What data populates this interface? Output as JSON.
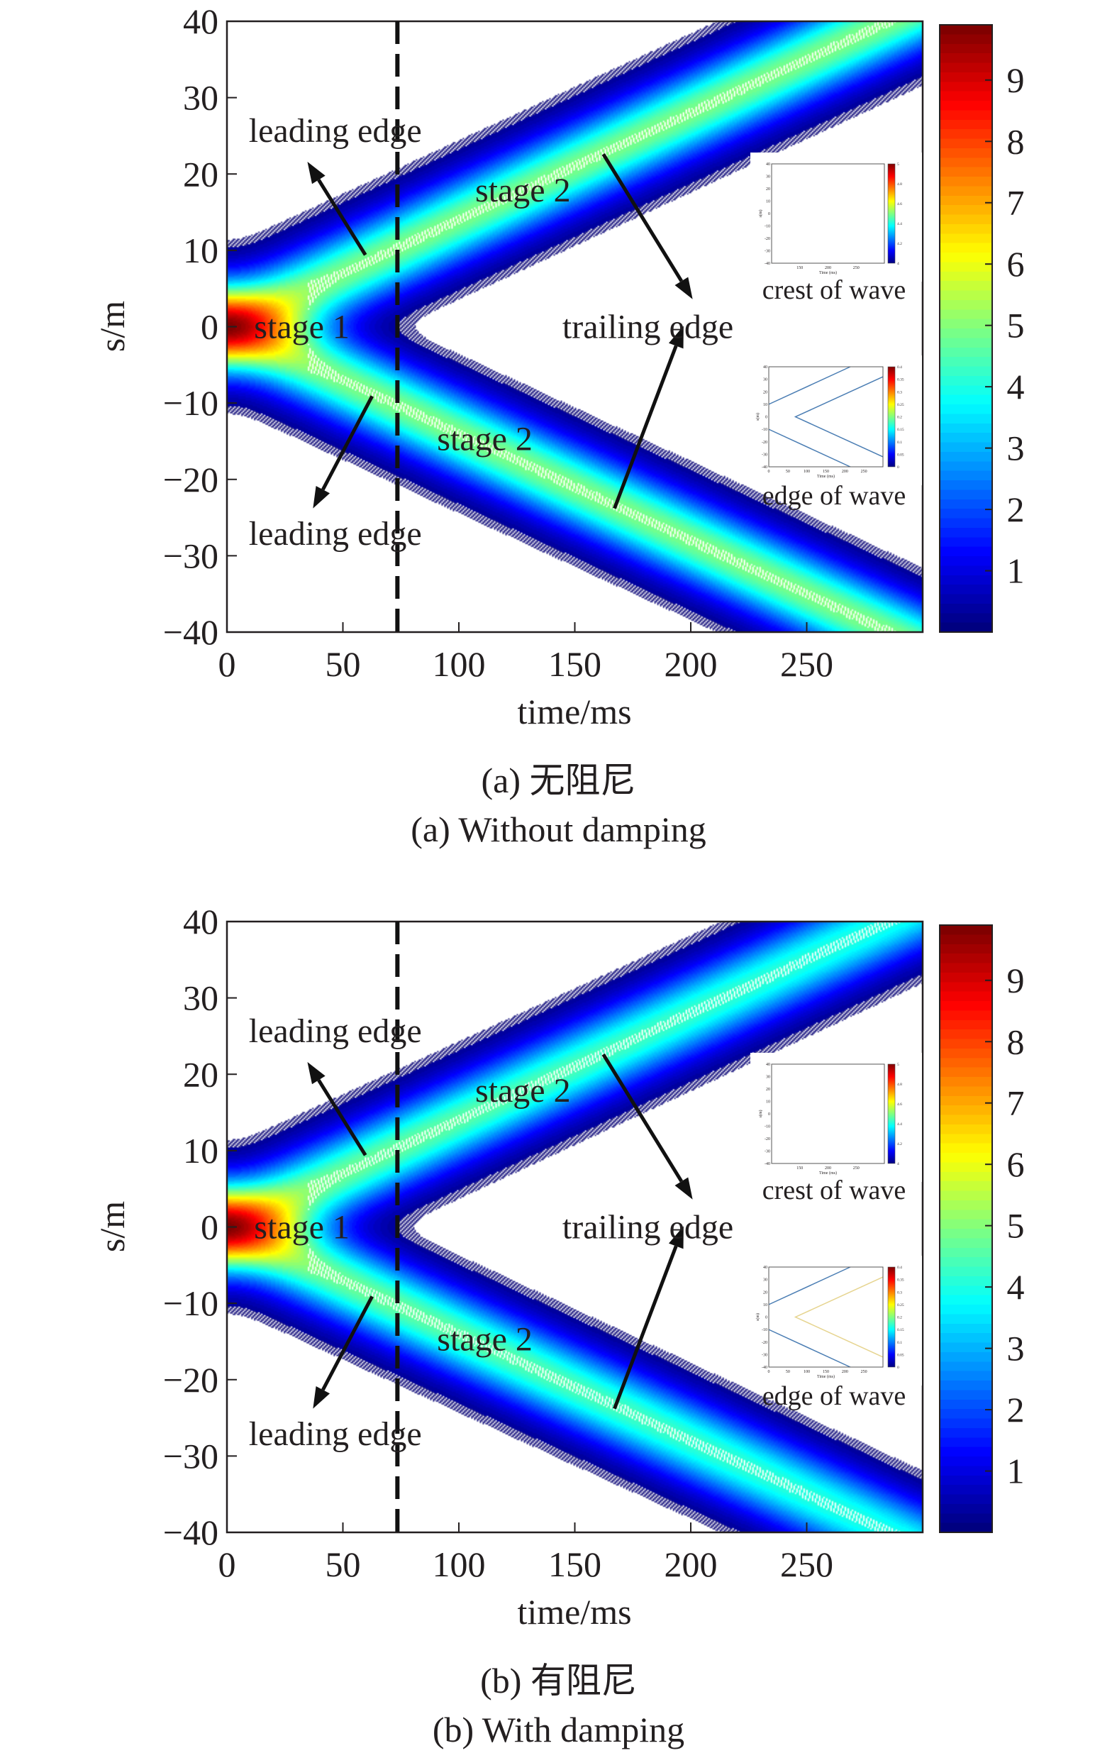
{
  "chart_data": [
    {
      "type": "heatmap",
      "panel": "a",
      "damping": false,
      "xlabel": "time/ms",
      "ylabel": "s/m",
      "xlim": [
        0,
        300
      ],
      "ylim": [
        -40,
        40
      ],
      "xticks": [
        "0",
        "50",
        "100",
        "150",
        "200",
        "250"
      ],
      "yticks": [
        "40",
        "30",
        "20",
        "10",
        "0",
        "−10",
        "−20",
        "−30",
        "−40"
      ],
      "colorbar": {
        "range": [
          0,
          9.9
        ],
        "ticks": [
          "1",
          "2",
          "3",
          "4",
          "5",
          "6",
          "7",
          "8",
          "9"
        ],
        "colormap": "jet"
      },
      "dashed_vline_x": 73.5,
      "wave": {
        "speed_m_per_ms": 0.14,
        "stage1_peak": 10,
        "stage2_peak": 5,
        "stage2_peak_at_300ms": 5,
        "leading_edge_s_at_t0": 10,
        "trailing_edge_origin_t": 70
      },
      "annotations": [
        "leading edge",
        "stage 2",
        "stage 1",
        "trailing edge",
        "stage 2",
        "leading edge"
      ],
      "insets": [
        {
          "label": "crest of wave",
          "xlabel": "Time (ms)",
          "ylabel": "s(m)",
          "xlim": [
            100,
            300
          ],
          "ylim": [
            -40,
            40
          ],
          "xticks": [
            "150",
            "200",
            "250"
          ],
          "yticks": [
            "40",
            "30",
            "20",
            "10",
            "0",
            "-10",
            "-20",
            "-30",
            "-40"
          ],
          "colorbar": {
            "range": [
              4,
              5
            ],
            "ticks": [
              "5",
              "4.8",
              "4.6",
              "4.4",
              "4.2",
              "4"
            ]
          }
        },
        {
          "label": "edge of wave",
          "xlabel": "Time (ms)",
          "ylabel": "s(m)",
          "xlim": [
            0,
            300
          ],
          "ylim": [
            -40,
            40
          ],
          "xticks": [
            "0",
            "50",
            "100",
            "150",
            "200",
            "250"
          ],
          "yticks": [
            "40",
            "30",
            "20",
            "10",
            "0",
            "-10",
            "-20",
            "-30",
            "-40"
          ],
          "colorbar": {
            "range": [
              0,
              0.4
            ],
            "ticks": [
              "0.4",
              "0.35",
              "0.3",
              "0.25",
              "0.2",
              "0.15",
              "0.1",
              "0.05",
              "0"
            ]
          },
          "line_colors": {
            "leading": "#4a7db3",
            "trailing": "#4a7db3"
          }
        }
      ],
      "caption_cn": "(a) 无阻尼",
      "caption_en": "(a) Without damping"
    },
    {
      "type": "heatmap",
      "panel": "b",
      "damping": true,
      "xlabel": "time/ms",
      "ylabel": "s/m",
      "xlim": [
        0,
        300
      ],
      "ylim": [
        -40,
        40
      ],
      "xticks": [
        "0",
        "50",
        "100",
        "150",
        "200",
        "250"
      ],
      "yticks": [
        "40",
        "30",
        "20",
        "10",
        "0",
        "−10",
        "−20",
        "−30",
        "−40"
      ],
      "colorbar": {
        "range": [
          0,
          9.9
        ],
        "ticks": [
          "1",
          "2",
          "3",
          "4",
          "5",
          "6",
          "7",
          "8",
          "9"
        ],
        "colormap": "jet"
      },
      "dashed_vline_x": 73.5,
      "wave": {
        "speed_m_per_ms": 0.14,
        "stage1_peak": 10,
        "stage2_peak": 4.8,
        "stage2_peak_at_300ms": 4.0,
        "leading_edge_s_at_t0": 10,
        "trailing_edge_origin_t": 70
      },
      "annotations": [
        "leading edge",
        "stage 2",
        "stage 1",
        "trailing edge",
        "stage 2",
        "leading edge"
      ],
      "insets": [
        {
          "label": "crest of wave",
          "xlabel": "Time (ms)",
          "ylabel": "s(m)",
          "xlim": [
            100,
            300
          ],
          "ylim": [
            -40,
            40
          ],
          "xticks": [
            "150",
            "200",
            "250"
          ],
          "yticks": [
            "40",
            "30",
            "20",
            "10",
            "0",
            "-10",
            "-20",
            "-30",
            "-40"
          ],
          "colorbar": {
            "range": [
              4,
              5
            ],
            "ticks": [
              "5",
              "4.8",
              "4.6",
              "4.4",
              "4.2",
              "4"
            ]
          }
        },
        {
          "label": "edge of wave",
          "xlabel": "Time (ms)",
          "ylabel": "s(m)",
          "xlim": [
            0,
            300
          ],
          "ylim": [
            -40,
            40
          ],
          "xticks": [
            "0",
            "50",
            "100",
            "150",
            "200",
            "250"
          ],
          "yticks": [
            "40",
            "30",
            "20",
            "10",
            "0",
            "-10",
            "-20",
            "-30",
            "-40"
          ],
          "colorbar": {
            "range": [
              0,
              0.4
            ],
            "ticks": [
              "0.4",
              "0.35",
              "0.3",
              "0.25",
              "0.2",
              "0.15",
              "0.1",
              "0.05",
              "0"
            ]
          },
          "line_colors": {
            "leading": "#4a7db3",
            "trailing": "#e6d48f"
          }
        }
      ],
      "caption_cn": "(b) 有阻尼",
      "caption_en": "(b) With damping"
    }
  ]
}
